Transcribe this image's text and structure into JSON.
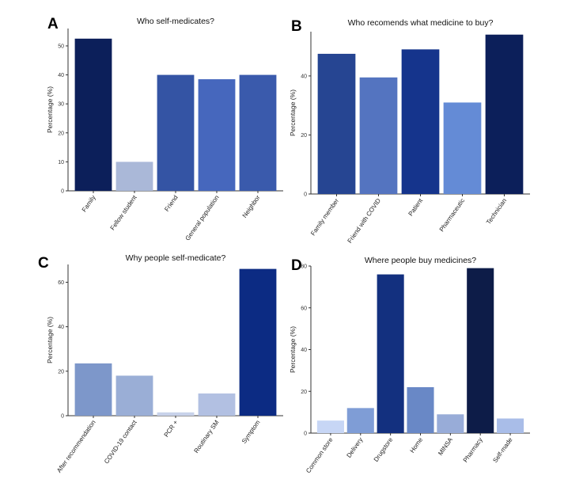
{
  "chart_data": [
    {
      "panel": "A",
      "type": "bar",
      "title": "Who self-medicates?",
      "ylabel": "Percentage (%)",
      "xlabel": "",
      "ylim": [
        0,
        56
      ],
      "yticks": [
        0,
        10,
        20,
        30,
        40,
        50
      ],
      "grid": false,
      "categories": [
        "Family",
        "Fellow student",
        "Friend",
        "General population",
        "Neighbor"
      ],
      "values": [
        52.5,
        10,
        40,
        38.5,
        40
      ],
      "colors": [
        "#0c1f5a",
        "#aab8d8",
        "#3454a4",
        "#4667bd",
        "#3a5aac"
      ]
    },
    {
      "panel": "B",
      "type": "bar",
      "title": "Who recomends what medicine to buy?",
      "ylabel": "Percentage (%)",
      "xlabel": "",
      "ylim": [
        0,
        55
      ],
      "yticks": [
        0,
        20,
        40
      ],
      "grid": false,
      "categories": [
        "Family member",
        "Friend with COVID",
        "Patient",
        "Pharmaceutic",
        "Technician"
      ],
      "values": [
        47.5,
        39.5,
        49,
        31,
        54
      ],
      "colors": [
        "#264592",
        "#5474c0",
        "#15348c",
        "#648bd6",
        "#0c1f5a"
      ]
    },
    {
      "panel": "C",
      "type": "bar",
      "title": "Why people self-medicate?",
      "ylabel": "Percentage (%)",
      "xlabel": "",
      "ylim": [
        0,
        68
      ],
      "yticks": [
        0,
        20,
        40,
        60
      ],
      "grid": false,
      "categories": [
        "After recommendation",
        "COVID-19 contact",
        "PCR +",
        "Routinary SM",
        "Symptom"
      ],
      "values": [
        23.5,
        18,
        1.5,
        10,
        66
      ],
      "colors": [
        "#7d97ca",
        "#9aaed6",
        "#c8d2ea",
        "#b2c0e2",
        "#0c2b83"
      ]
    },
    {
      "panel": "D",
      "type": "bar",
      "title": "Where people buy medicines?",
      "ylabel": "Percentage (%)",
      "xlabel": "",
      "ylim": [
        0,
        80
      ],
      "yticks": [
        0,
        20,
        40,
        60,
        80
      ],
      "grid": false,
      "categories": [
        "Common store",
        "Delivery",
        "Drugstore",
        "Home",
        "MINSA",
        "Pharmacy",
        "Self-made"
      ],
      "values": [
        6,
        12,
        76,
        22,
        9,
        79,
        7
      ],
      "colors": [
        "#c7d6f5",
        "#7f9dd6",
        "#13307f",
        "#6988c6",
        "#98acd8",
        "#0d1c48",
        "#a9bde8"
      ]
    }
  ]
}
